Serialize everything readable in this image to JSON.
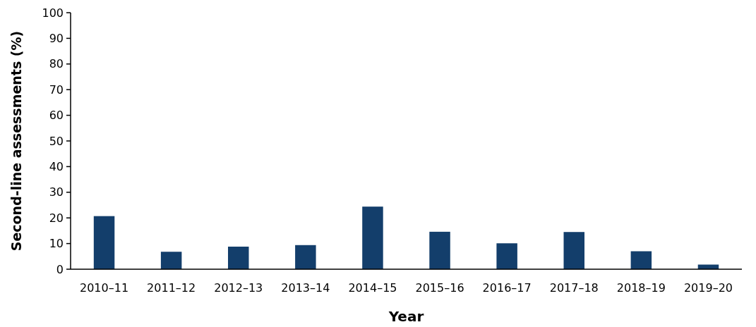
{
  "chart_data": {
    "type": "bar",
    "xlabel": "Year",
    "ylabel": "Second-line assessments (%)",
    "categories": [
      "2010–11",
      "2011–12",
      "2012–13",
      "2013–14",
      "2014–15",
      "2015–16",
      "2016–17",
      "2017–18",
      "2018–19",
      "2019–20"
    ],
    "values": [
      20.7,
      6.8,
      8.8,
      9.4,
      24.4,
      14.6,
      10.1,
      14.5,
      7.0,
      1.8
    ],
    "color": "#133e6b",
    "ylim": [
      0,
      100
    ],
    "yticks": [
      0,
      10,
      20,
      30,
      40,
      50,
      60,
      70,
      80,
      90,
      100
    ],
    "grid": false
  }
}
